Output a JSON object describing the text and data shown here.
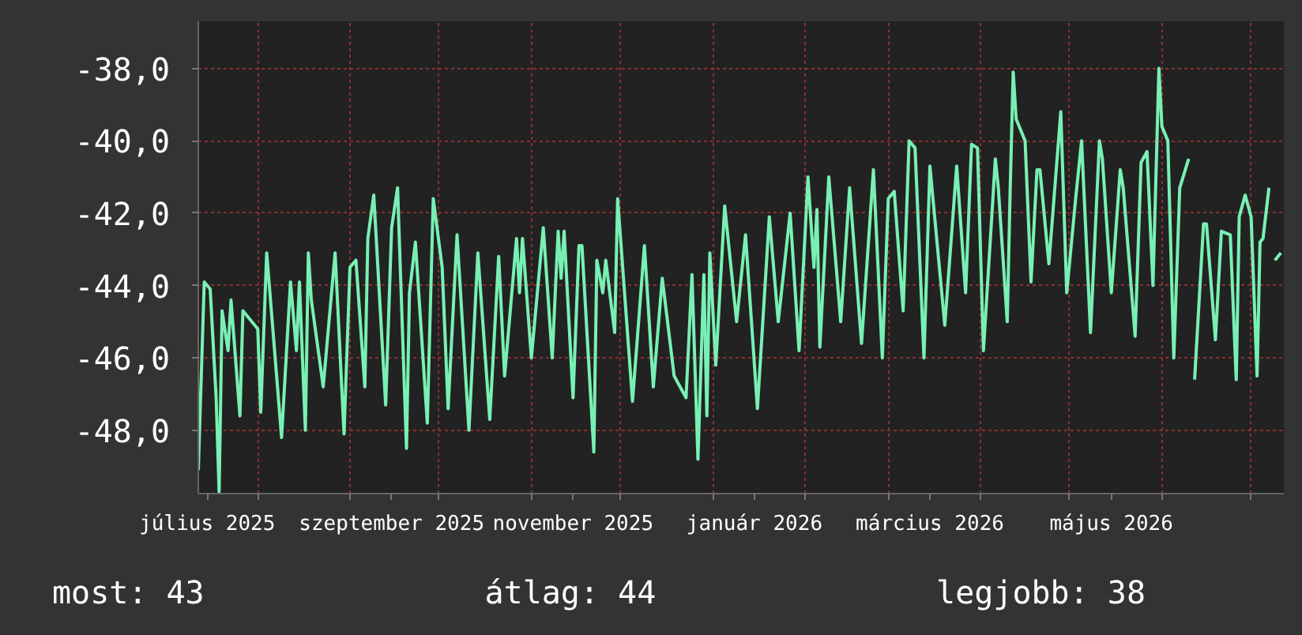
{
  "chart_data": {
    "type": "line",
    "x": [
      "2025-07-12",
      "2025-07-14",
      "2025-07-16",
      "2025-07-18",
      "2025-07-19",
      "2025-07-20",
      "2025-07-22",
      "2025-07-23",
      "2025-07-26",
      "2025-07-27",
      "2025-08-01",
      "2025-08-02",
      "2025-08-04",
      "2025-08-09",
      "2025-08-12",
      "2025-08-14",
      "2025-08-15",
      "2025-08-17",
      "2025-08-18",
      "2025-08-19",
      "2025-08-23",
      "2025-08-27",
      "2025-08-30",
      "2025-09-01",
      "2025-09-03",
      "2025-09-06",
      "2025-09-07",
      "2025-09-09",
      "2025-09-13",
      "2025-09-15",
      "2025-09-17",
      "2025-09-20",
      "2025-09-21",
      "2025-09-23",
      "2025-09-27",
      "2025-09-29",
      "2025-10-02",
      "2025-10-04",
      "2025-10-07",
      "2025-10-11",
      "2025-10-14",
      "2025-10-18",
      "2025-10-21",
      "2025-10-23",
      "2025-10-27",
      "2025-10-28",
      "2025-10-29",
      "2025-11-01",
      "2025-11-05",
      "2025-11-08",
      "2025-11-10",
      "2025-11-11",
      "2025-11-12",
      "2025-11-15",
      "2025-11-17",
      "2025-11-18",
      "2025-11-22",
      "2025-11-23",
      "2025-11-25",
      "2025-11-26",
      "2025-11-29",
      "2025-11-30",
      "2025-12-05",
      "2025-12-09",
      "2025-12-12",
      "2025-12-15",
      "2025-12-19",
      "2025-12-23",
      "2025-12-25",
      "2025-12-27",
      "2025-12-29",
      "2025-12-30",
      "2025-12-31",
      "2026-01-02",
      "2026-01-05",
      "2026-01-09",
      "2026-01-12",
      "2026-01-16",
      "2026-01-20",
      "2026-01-23",
      "2026-01-27",
      "2026-01-30",
      "2026-02-02",
      "2026-02-04",
      "2026-02-05",
      "2026-02-06",
      "2026-02-09",
      "2026-02-13",
      "2026-02-16",
      "2026-02-20",
      "2026-02-24",
      "2026-02-27",
      "2026-03-01",
      "2026-03-03",
      "2026-03-06",
      "2026-03-08",
      "2026-03-10",
      "2026-03-13",
      "2026-03-15",
      "2026-03-20",
      "2026-03-24",
      "2026-03-27",
      "2026-03-29",
      "2026-03-31",
      "2026-04-02",
      "2026-04-06",
      "2026-04-07",
      "2026-04-10",
      "2026-04-11",
      "2026-04-12",
      "2026-04-13",
      "2026-04-16",
      "2026-04-18",
      "2026-04-20",
      "2026-04-21",
      "2026-04-24",
      "2026-04-28",
      "2026-04-30",
      "2026-05-03",
      "2026-05-05",
      "2026-05-08",
      "2026-05-11",
      "2026-05-12",
      "2026-05-15",
      "2026-05-18",
      "2026-05-19",
      "2026-05-23",
      "2026-05-25",
      "2026-05-27",
      "2026-05-29",
      "2026-05-31",
      "2026-06-01",
      "2026-06-03",
      "2026-06-05",
      "2026-06-07",
      "2026-06-10",
      "2026-06-11",
      "2026-06-12",
      "2026-06-15",
      "2026-06-16",
      "2026-06-19",
      "2026-06-21",
      "2026-06-24",
      "2026-06-26",
      "2026-06-27",
      "2026-06-29",
      "2026-07-01",
      "2026-07-03",
      "2026-07-04",
      "2026-07-05",
      "2026-07-07",
      "2026-07-08",
      "2026-07-09",
      "2026-07-11"
    ],
    "series": [
      {
        "color": "#78f0b4",
        "values": [
          -49.1,
          -43.9,
          -44.1,
          -47.1,
          -49.7,
          -44.7,
          -45.8,
          -44.4,
          -47.6,
          -44.7,
          -45.2,
          -47.5,
          -43.1,
          -48.2,
          -43.9,
          -45.8,
          -43.9,
          -48.0,
          -43.1,
          -44.4,
          -46.8,
          -43.1,
          -48.1,
          -43.5,
          -43.3,
          -46.8,
          -42.7,
          -41.5,
          -47.3,
          -42.4,
          -41.3,
          -48.5,
          -44.2,
          -42.8,
          -47.8,
          -41.6,
          -43.5,
          -47.4,
          -42.6,
          -48.0,
          -43.1,
          -47.7,
          -43.2,
          -46.5,
          -42.7,
          -44.2,
          -42.7,
          -46.0,
          -42.4,
          -46.0,
          -42.5,
          -43.8,
          -42.5,
          -47.1,
          -42.9,
          -42.9,
          -48.6,
          -43.3,
          -44.2,
          -43.3,
          -45.3,
          -41.6,
          -47.2,
          -42.9,
          -46.8,
          -43.8,
          -46.5,
          -47.1,
          -43.7,
          -48.8,
          -43.7,
          -47.6,
          -43.1,
          -46.2,
          -41.8,
          -45.0,
          -42.6,
          -47.4,
          -42.1,
          -45.0,
          -42.0,
          -45.8,
          -41.0,
          -43.5,
          -41.9,
          -45.7,
          -41.0,
          -45.0,
          -41.3,
          -45.6,
          -40.8,
          -46.0,
          -41.6,
          -41.4,
          -44.7,
          -40.0,
          -40.2,
          -46.0,
          -40.7,
          -45.1,
          -40.7,
          -44.2,
          -40.1,
          -40.2,
          -45.8,
          -40.5,
          -41.3,
          -45.0,
          -41.3,
          -38.1,
          -39.4,
          -40.0,
          -43.9,
          -40.8,
          -40.8,
          -43.4,
          -39.2,
          -44.2,
          -41.6,
          -40.0,
          -45.3,
          -40.0,
          -40.5,
          -44.2,
          -40.8,
          -41.3,
          -45.4,
          -40.6,
          -40.3,
          -44.0,
          -38.0,
          -39.6,
          -40.0,
          -46.0,
          -41.3,
          -40.5,
          null,
          -46.6,
          -42.3,
          -42.3,
          -45.5,
          -42.5,
          -42.6,
          -46.6,
          -42.1,
          -41.5,
          -42.1,
          -46.5,
          -42.8,
          -42.7,
          -41.3,
          null,
          -43.3,
          -43.1
        ]
      }
    ],
    "xlim": [
      "2025-07-12",
      "2026-07-12"
    ],
    "xticks": [
      {
        "value": "2025-07-15",
        "label": "július 2025"
      },
      {
        "value": "2025-08-01",
        "label": null
      },
      {
        "value": "2025-09-01",
        "label": null
      },
      {
        "value": "2025-09-15",
        "label": "szeptember 2025"
      },
      {
        "value": "2025-10-01",
        "label": null
      },
      {
        "value": "2025-11-01",
        "label": null
      },
      {
        "value": "2025-11-15",
        "label": "november 2025"
      },
      {
        "value": "2025-12-01",
        "label": null
      },
      {
        "value": "2026-01-01",
        "label": null
      },
      {
        "value": "2026-01-15",
        "label": "január 2026"
      },
      {
        "value": "2026-02-01",
        "label": null
      },
      {
        "value": "2026-03-01",
        "label": null
      },
      {
        "value": "2026-03-15",
        "label": "március 2026"
      },
      {
        "value": "2026-04-01",
        "label": null
      },
      {
        "value": "2026-05-01",
        "label": null
      },
      {
        "value": "2026-05-15",
        "label": "május 2026"
      },
      {
        "value": "2026-06-01",
        "label": null
      },
      {
        "value": "2026-07-01",
        "label": null
      }
    ],
    "ylim": [
      -49.75,
      -36.7
    ],
    "yticks": [
      {
        "value": -48,
        "label": "-48,0"
      },
      {
        "value": -46,
        "label": "-46,0"
      },
      {
        "value": -44,
        "label": "-44,0"
      },
      {
        "value": -42,
        "label": "-42,0"
      },
      {
        "value": -40,
        "label": "-40,0"
      },
      {
        "value": -38,
        "label": "-38,0"
      }
    ],
    "grid": true,
    "annotations": [
      "most: 43",
      "átlag: 44",
      "legjobb: 38"
    ]
  }
}
